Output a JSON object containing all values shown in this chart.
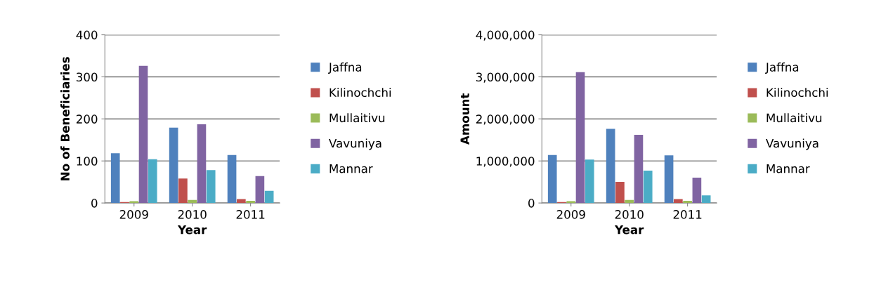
{
  "chart_data": [
    {
      "type": "bar",
      "xlabel": "Year",
      "ylabel": "No of Beneficiaries",
      "categories": [
        "2009",
        "2010",
        "2011"
      ],
      "series": [
        {
          "name": "Jaffna",
          "color": "#4f81bd",
          "values": [
            117,
            178,
            113
          ]
        },
        {
          "name": "Kilinochchi",
          "color": "#c0504d",
          "values": [
            1,
            57,
            8
          ]
        },
        {
          "name": "Mullaitivu",
          "color": "#9bbb59",
          "values": [
            3,
            6,
            4
          ]
        },
        {
          "name": "Vavuniya",
          "color": "#8064a2",
          "values": [
            325,
            186,
            63
          ]
        },
        {
          "name": "Mannar",
          "color": "#4bacc6",
          "values": [
            103,
            77,
            28
          ]
        }
      ],
      "ylim": [
        0,
        400
      ],
      "yticks": [
        0,
        100,
        200,
        300,
        400
      ],
      "grid": "y",
      "legend": "right"
    },
    {
      "type": "bar",
      "xlabel": "Year",
      "ylabel": "Amount",
      "categories": [
        "2009",
        "2010",
        "2011"
      ],
      "series": [
        {
          "name": "Jaffna",
          "color": "#4f81bd",
          "values": [
            1130000,
            1750000,
            1120000
          ]
        },
        {
          "name": "Kilinochchi",
          "color": "#c0504d",
          "values": [
            10000,
            490000,
            80000
          ]
        },
        {
          "name": "Mullaitivu",
          "color": "#9bbb59",
          "values": [
            30000,
            60000,
            40000
          ]
        },
        {
          "name": "Vavuniya",
          "color": "#8064a2",
          "values": [
            3100000,
            1610000,
            590000
          ]
        },
        {
          "name": "Mannar",
          "color": "#4bacc6",
          "values": [
            1020000,
            760000,
            170000
          ]
        }
      ],
      "ylim": [
        0,
        4000000
      ],
      "yticks": [
        0,
        {
          "value": 1000000,
          "label": "1,000,000"
        },
        {
          "value": 2000000,
          "label": "2,000,000"
        },
        {
          "value": 3000000,
          "label": "3,000,000"
        },
        {
          "value": 4000000,
          "label": "4,000,000"
        }
      ],
      "grid": "y",
      "legend": "right"
    }
  ]
}
